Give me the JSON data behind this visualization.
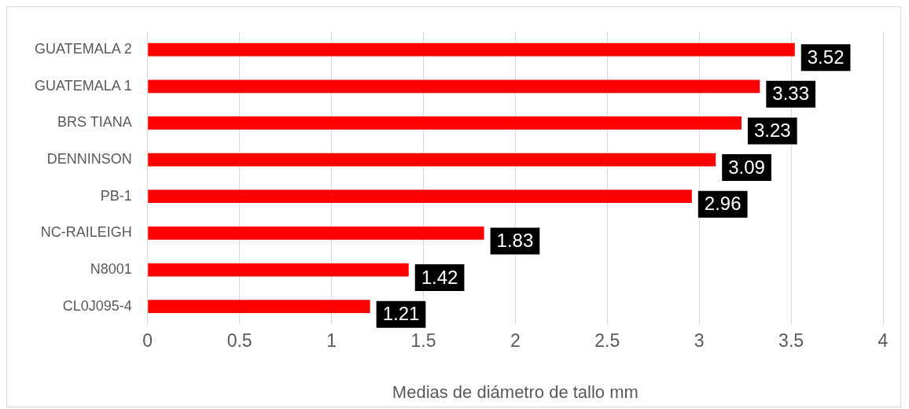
{
  "chart_data": {
    "type": "bar",
    "orientation": "horizontal",
    "xlabel": "Medias de diámetro de tallo mm",
    "categories": [
      "GUATEMALA 2",
      "GUATEMALA 1",
      "BRS TIANA",
      "DENNINSON",
      "PB-1",
      "NC-RAILEIGH",
      "N8001",
      "CL0J095-4"
    ],
    "values": [
      3.52,
      3.33,
      3.23,
      3.09,
      2.96,
      1.83,
      1.42,
      1.21
    ],
    "color": "#ff0000",
    "xlim": [
      0,
      4
    ],
    "xticks": [
      0,
      0.5,
      1,
      1.5,
      2,
      2.5,
      3,
      3.5,
      4
    ],
    "grid": "x",
    "data_labels": true,
    "legend": false
  }
}
